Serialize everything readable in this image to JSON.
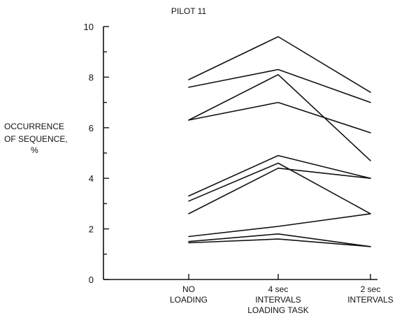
{
  "chart_data": {
    "type": "line",
    "title": "PILOT 11",
    "ylabel_lines": [
      "OCCURRENCE",
      "OF SEQUENCE,",
      "%"
    ],
    "xlabel": "",
    "ylim": [
      0,
      10
    ],
    "yticks": [
      0,
      2,
      4,
      6,
      8,
      10
    ],
    "yticks_text": [
      "0",
      "2",
      "4",
      "6",
      "8",
      "10"
    ],
    "categories": [
      [
        "NO",
        "LOADING"
      ],
      [
        "4 sec",
        "INTERVALS",
        "LOADING TASK"
      ],
      [
        "2 sec",
        "INTERVALS"
      ]
    ],
    "grid": false,
    "legend": "none",
    "series": [
      {
        "values": [
          7.9,
          9.6,
          7.4
        ]
      },
      {
        "values": [
          7.6,
          8.3,
          7.0
        ]
      },
      {
        "values": [
          6.3,
          8.1,
          4.7
        ]
      },
      {
        "values": [
          6.3,
          7.0,
          5.8
        ]
      },
      {
        "values": [
          3.3,
          4.9,
          4.0
        ]
      },
      {
        "values": [
          3.1,
          4.6,
          2.6
        ]
      },
      {
        "values": [
          2.6,
          4.4,
          4.0
        ]
      },
      {
        "values": [
          1.7,
          2.1,
          2.6
        ]
      },
      {
        "values": [
          1.5,
          1.8,
          1.3
        ]
      },
      {
        "values": [
          1.45,
          1.6,
          1.3
        ]
      }
    ],
    "colors": {
      "ink": "#111111",
      "background": "#ffffff"
    }
  }
}
